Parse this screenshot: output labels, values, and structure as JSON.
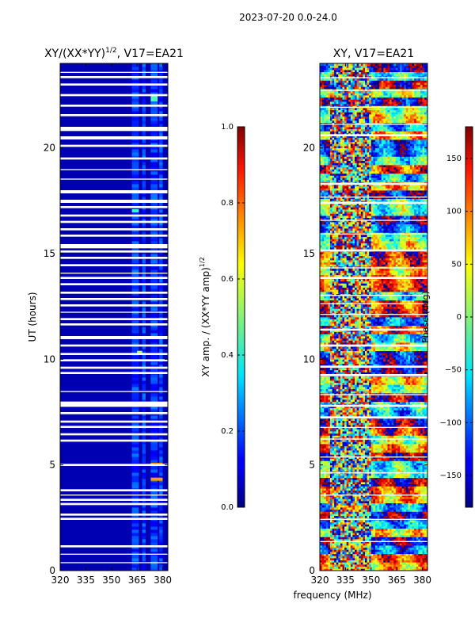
{
  "suptitle": "2023-07-20 0.0-24.0",
  "xlabel_shared": "frequency (MHz)",
  "chart_data": [
    {
      "type": "heatmap",
      "name": "amplitude-ratio",
      "title": "XY/(XX*YY)",
      "title_exponent": "1/2",
      "title_suffix": ", V17=EA21",
      "xlabel": "",
      "ylabel": "UT (hours)",
      "xlim": [
        320,
        383
      ],
      "ylim": [
        0,
        24
      ],
      "xticks": [
        320,
        335,
        350,
        365,
        380
      ],
      "xtick_labels": [
        "320",
        "335",
        "350",
        "365",
        "380"
      ],
      "yticks": [
        0,
        5,
        10,
        15,
        20
      ],
      "ytick_labels": [
        "0",
        "5",
        "10",
        "15",
        "20"
      ],
      "colorbar": {
        "label_prefix": "XY amp. / (XX*YY amp)",
        "label_exponent": "1/2",
        "range": [
          0.0,
          1.0
        ],
        "ticks": [
          0.0,
          0.2,
          0.4,
          0.6,
          0.8,
          1.0
        ],
        "tick_labels": [
          "0.0",
          "0.2",
          "0.4",
          "0.6",
          "0.8",
          "1.0"
        ],
        "colormap": "jet"
      },
      "typical_value": 0.05,
      "hot_channels_mhz": [
        [
          362,
          366
        ],
        [
          368,
          370
        ],
        [
          373,
          377
        ],
        [
          378,
          380
        ]
      ],
      "hot_channel_value": 0.25,
      "flagged_ut_hours": [
        [
          0.35,
          0.4
        ],
        [
          0.75,
          0.8
        ],
        [
          1.1,
          1.2
        ],
        [
          2.4,
          2.5
        ],
        [
          2.6,
          2.7
        ],
        [
          3.1,
          3.2
        ],
        [
          3.3,
          3.4
        ],
        [
          3.55,
          3.6
        ],
        [
          3.75,
          3.85
        ],
        [
          4.95,
          5.05
        ],
        [
          6.1,
          6.2
        ],
        [
          6.4,
          6.5
        ],
        [
          6.75,
          6.85
        ],
        [
          7.0,
          7.1
        ],
        [
          7.4,
          7.5
        ],
        [
          7.75,
          8.0
        ],
        [
          8.45,
          8.5
        ],
        [
          9.3,
          9.4
        ],
        [
          9.55,
          9.65
        ],
        [
          9.9,
          10.0
        ],
        [
          10.2,
          10.3
        ],
        [
          10.6,
          10.7
        ],
        [
          10.95,
          11.1
        ],
        [
          11.6,
          11.7
        ],
        [
          11.85,
          11.95
        ],
        [
          12.2,
          12.25
        ],
        [
          12.5,
          12.6
        ],
        [
          12.8,
          12.9
        ],
        [
          13.1,
          13.2
        ],
        [
          13.5,
          13.6
        ],
        [
          13.8,
          13.9
        ],
        [
          14.05,
          14.1
        ],
        [
          14.4,
          14.5
        ],
        [
          14.75,
          14.85
        ],
        [
          15.05,
          15.15
        ],
        [
          15.25,
          15.45
        ],
        [
          15.8,
          15.9
        ],
        [
          16.1,
          16.2
        ],
        [
          16.45,
          16.55
        ],
        [
          16.75,
          16.85
        ],
        [
          17.15,
          17.25
        ],
        [
          17.4,
          17.55
        ],
        [
          17.85,
          18.0
        ],
        [
          18.5,
          18.55
        ],
        [
          18.95,
          19.0
        ],
        [
          19.45,
          19.55
        ],
        [
          20.05,
          20.15
        ],
        [
          20.4,
          20.55
        ],
        [
          20.8,
          21.0
        ],
        [
          21.5,
          21.6
        ],
        [
          21.95,
          22.05
        ],
        [
          22.45,
          22.55
        ],
        [
          22.95,
          23.05
        ],
        [
          23.3,
          23.4
        ],
        [
          23.55,
          23.6
        ]
      ],
      "bright_spots": [
        {
          "ut": [
            4.95,
            5.1
          ],
          "mhz": [
            373,
            380
          ],
          "value": 0.75
        },
        {
          "ut": [
            4.25,
            4.4
          ],
          "mhz": [
            373,
            380
          ],
          "value": 0.72
        },
        {
          "ut": [
            22.2,
            22.5
          ],
          "mhz": [
            373,
            377
          ],
          "value": 0.45
        },
        {
          "ut": [
            16.95,
            17.1
          ],
          "mhz": [
            362,
            366
          ],
          "value": 0.42
        },
        {
          "ut": [
            10.25,
            10.4
          ],
          "mhz": [
            365,
            368
          ],
          "value": 0.55
        }
      ]
    },
    {
      "type": "heatmap",
      "name": "phase",
      "title": "XY, V17=EA21",
      "xlabel": "frequency (MHz)",
      "ylabel": "",
      "xlim": [
        320,
        383
      ],
      "ylim": [
        0,
        24
      ],
      "xticks": [
        320,
        335,
        350,
        365,
        380
      ],
      "xtick_labels": [
        "320",
        "335",
        "350",
        "365",
        "380"
      ],
      "yticks": [
        0,
        5,
        10,
        15,
        20
      ],
      "ytick_labels": [
        "0",
        "5",
        "10",
        "15",
        "20"
      ],
      "colorbar": {
        "label": "Phase (deg)",
        "range": [
          -180,
          180
        ],
        "ticks": [
          -150,
          -100,
          -50,
          0,
          50,
          100,
          150
        ],
        "tick_labels": [
          "−150",
          "−100",
          "−50",
          "0",
          "50",
          "100",
          "150"
        ],
        "colormap": "jet"
      },
      "noisy_band_mhz": [
        325,
        350
      ],
      "flagged_ut_hours": [
        [
          1.35,
          1.4
        ],
        [
          2.4,
          2.45
        ],
        [
          3.55,
          3.6
        ],
        [
          4.6,
          4.65
        ],
        [
          5.35,
          5.4
        ],
        [
          6.2,
          6.25
        ],
        [
          6.75,
          6.8
        ],
        [
          7.2,
          7.3
        ],
        [
          7.75,
          7.85
        ],
        [
          8.3,
          8.35
        ],
        [
          9.2,
          9.3
        ],
        [
          9.6,
          9.7
        ],
        [
          10.6,
          10.7
        ],
        [
          11.35,
          11.45
        ],
        [
          12.1,
          12.15
        ],
        [
          12.6,
          12.65
        ],
        [
          13.0,
          13.05
        ],
        [
          13.8,
          13.9
        ],
        [
          14.3,
          14.35
        ],
        [
          15.1,
          15.2
        ],
        [
          15.9,
          15.95
        ],
        [
          16.55,
          16.6
        ],
        [
          17.35,
          17.45
        ],
        [
          17.65,
          17.7
        ],
        [
          18.25,
          18.35
        ],
        [
          20.55,
          20.65
        ],
        [
          21.1,
          21.15
        ],
        [
          21.9,
          21.95
        ],
        [
          22.7,
          22.75
        ],
        [
          23.3,
          23.35
        ]
      ]
    }
  ]
}
